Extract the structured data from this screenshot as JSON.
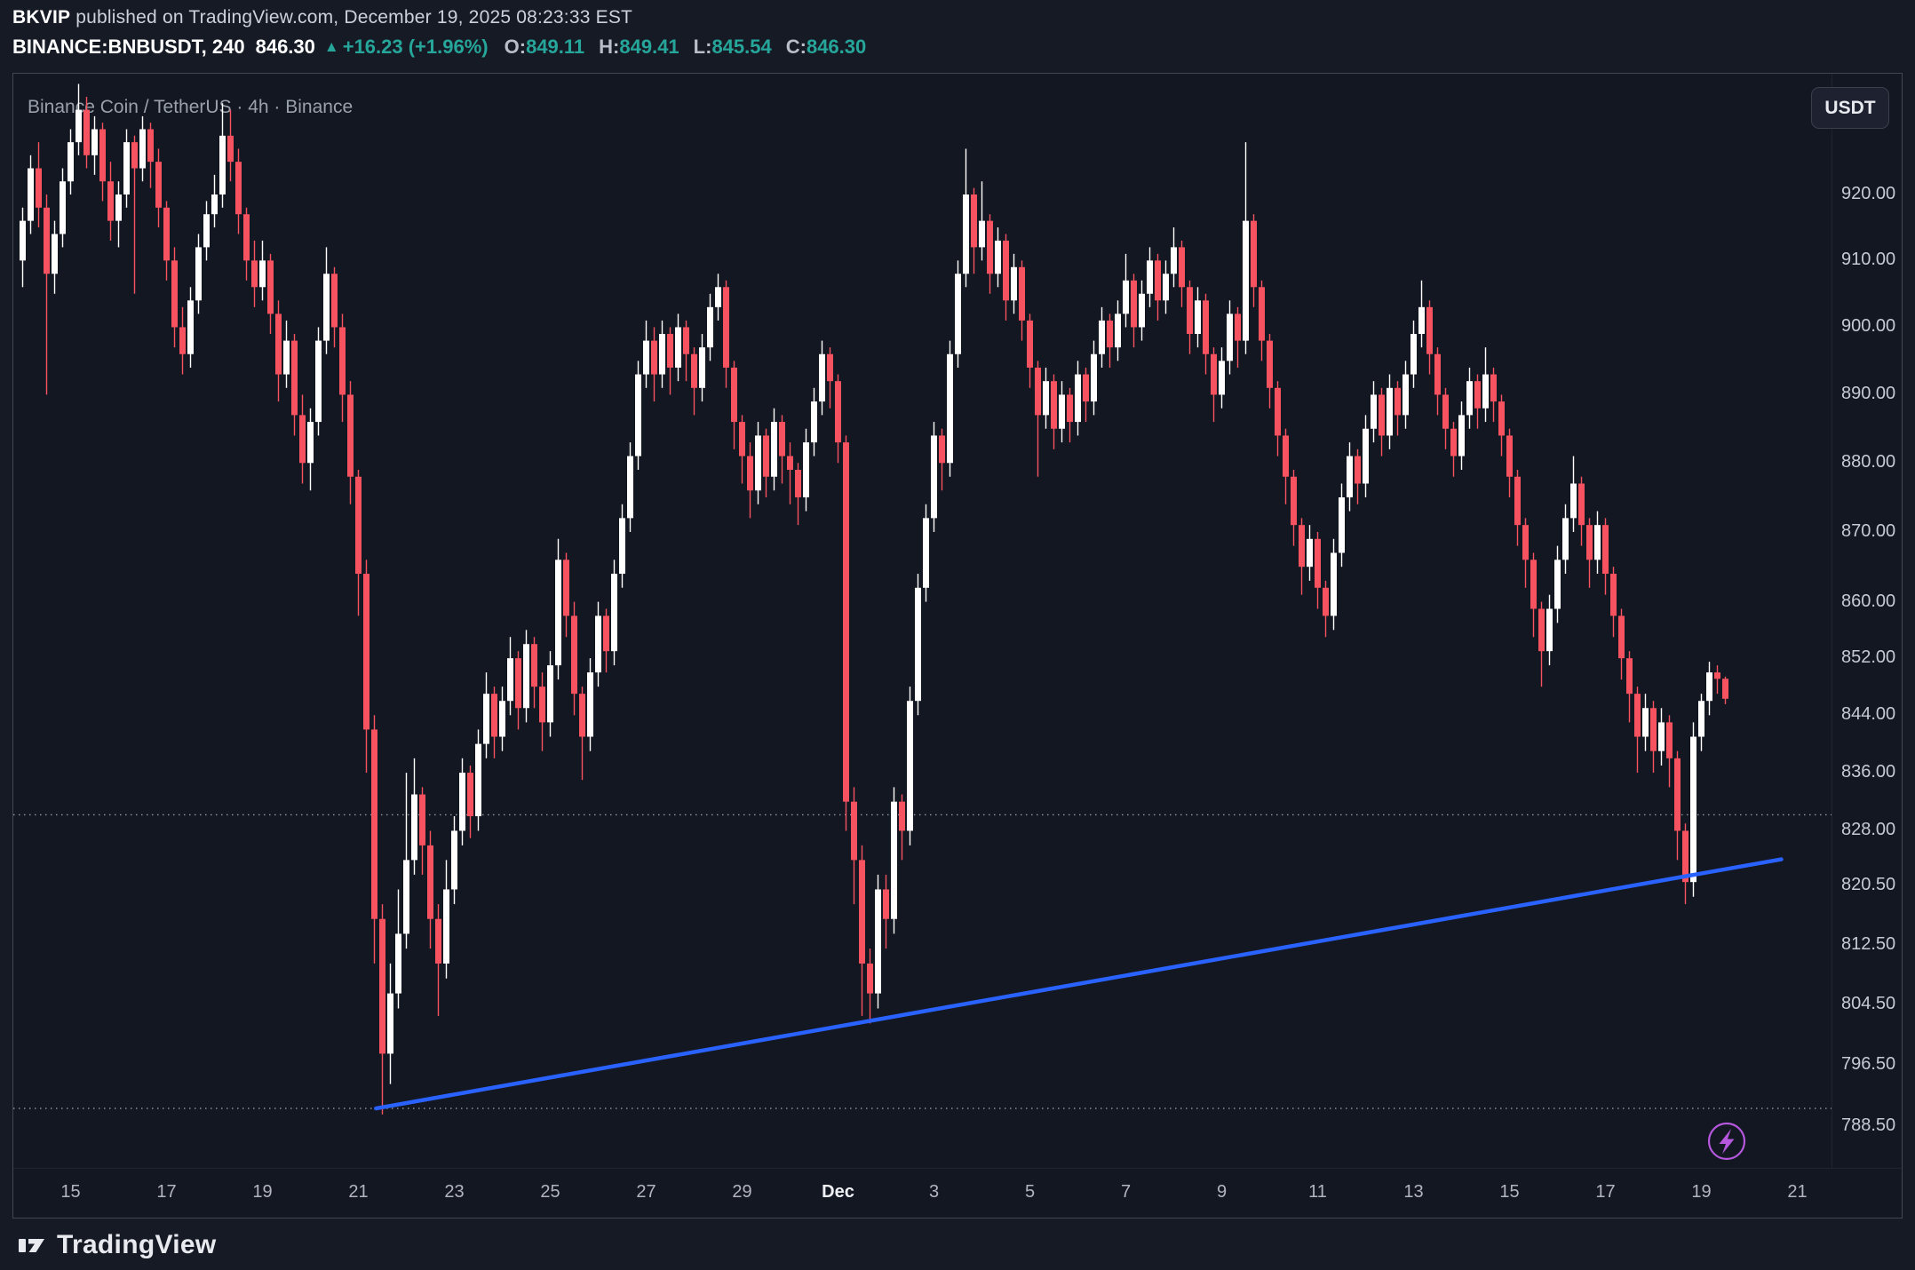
{
  "header": {
    "author": "BKVIP",
    "published_text": " published on TradingView.com, December 19, 2025 08:23:33 EST",
    "symbol": "BINANCE:BNBUSDT, 240",
    "last_price": "846.30",
    "up_arrow": "▲",
    "change_text": "+16.23 (+1.96%)",
    "ohlc": [
      {
        "label": "O:",
        "value": "849.11"
      },
      {
        "label": "H:",
        "value": "849.41"
      },
      {
        "label": "L:",
        "value": "845.54"
      },
      {
        "label": "C:",
        "value": "846.30"
      }
    ]
  },
  "chart": {
    "title_overlay": "Binance Coin / TetherUS · 4h · Binance",
    "currency_button": "USDT"
  },
  "footer": {
    "brand": "TradingView"
  },
  "ui_colors": {
    "background": "#161a25",
    "panel_background": "#131722",
    "teal": "#26a69a",
    "white": "#ffffff",
    "gray_text": "#b2b5be"
  },
  "chart_data": {
    "type": "candlestick",
    "title": "BINANCE:BNBUSDT 4h (Binance Coin / TetherUS)",
    "interval": "4h",
    "legend_position": "none",
    "grid": false,
    "colors": {
      "up": "#ffffff",
      "down": "#f7525f",
      "trendline": "#2962ff",
      "dotted": "#9598a1",
      "accent_purple": "#b558dd"
    },
    "y_axis": {
      "side": "right",
      "scale": "log",
      "visible_range": [
        783,
        937
      ],
      "ticks": [
        {
          "label": "920.00",
          "value": 920
        },
        {
          "label": "910.00",
          "value": 910
        },
        {
          "label": "900.00",
          "value": 900
        },
        {
          "label": "890.00",
          "value": 890
        },
        {
          "label": "880.00",
          "value": 880
        },
        {
          "label": "870.00",
          "value": 870
        },
        {
          "label": "860.00",
          "value": 860
        },
        {
          "label": "852.00",
          "value": 852
        },
        {
          "label": "844.00",
          "value": 844
        },
        {
          "label": "836.00",
          "value": 836
        },
        {
          "label": "828.00",
          "value": 828
        },
        {
          "label": "820.50",
          "value": 820.5
        },
        {
          "label": "812.50",
          "value": 812.5
        },
        {
          "label": "804.50",
          "value": 804.5
        },
        {
          "label": "796.50",
          "value": 796.5
        },
        {
          "label": "788.50",
          "value": 788.5
        }
      ]
    },
    "x_axis": {
      "start_date": "Nov 14",
      "candles_per_day": 6,
      "labels": [
        {
          "text": "15",
          "index": 6
        },
        {
          "text": "17",
          "index": 18
        },
        {
          "text": "19",
          "index": 30
        },
        {
          "text": "21",
          "index": 42
        },
        {
          "text": "23",
          "index": 54
        },
        {
          "text": "25",
          "index": 66
        },
        {
          "text": "27",
          "index": 78
        },
        {
          "text": "29",
          "index": 90
        },
        {
          "text": "Dec",
          "index": 102,
          "major": true
        },
        {
          "text": "3",
          "index": 114
        },
        {
          "text": "5",
          "index": 126
        },
        {
          "text": "7",
          "index": 138
        },
        {
          "text": "9",
          "index": 150
        },
        {
          "text": "11",
          "index": 162
        },
        {
          "text": "13",
          "index": 174
        },
        {
          "text": "15",
          "index": 186
        },
        {
          "text": "17",
          "index": 198
        },
        {
          "text": "19",
          "index": 210
        },
        {
          "text": "21",
          "index": 222
        }
      ]
    },
    "dotted_levels": [
      830.2,
      790.8
    ],
    "trendline": {
      "from_index": 44.2,
      "from_price": 790.8,
      "to_index": 220,
      "to_price": 824.1,
      "color": "#2962ff"
    },
    "candles_ohlc": [
      [
        910,
        918,
        906,
        916
      ],
      [
        916,
        926,
        914,
        924
      ],
      [
        924,
        928,
        915,
        918
      ],
      [
        918,
        920,
        890,
        908
      ],
      [
        908,
        916,
        905,
        914
      ],
      [
        914,
        924,
        912,
        922
      ],
      [
        922,
        930,
        920,
        928
      ],
      [
        928,
        937,
        926,
        933
      ],
      [
        933,
        935,
        924,
        926
      ],
      [
        926,
        932,
        923,
        930
      ],
      [
        930,
        931,
        919,
        922
      ],
      [
        922,
        925,
        913,
        916
      ],
      [
        916,
        922,
        912,
        920
      ],
      [
        920,
        930,
        918,
        928
      ],
      [
        928,
        929,
        905,
        924
      ],
      [
        924,
        932,
        922,
        930
      ],
      [
        930,
        931,
        921,
        925
      ],
      [
        925,
        927,
        915,
        918
      ],
      [
        918,
        919,
        907,
        910
      ],
      [
        910,
        912,
        897,
        900
      ],
      [
        900,
        903,
        893,
        896
      ],
      [
        896,
        906,
        894,
        904
      ],
      [
        904,
        914,
        902,
        912
      ],
      [
        912,
        919,
        910,
        917
      ],
      [
        917,
        923,
        915,
        920
      ],
      [
        920,
        934,
        918,
        929
      ],
      [
        929,
        933,
        922,
        925
      ],
      [
        925,
        927,
        914,
        917
      ],
      [
        917,
        918,
        907,
        910
      ],
      [
        910,
        913,
        903,
        906
      ],
      [
        906,
        913,
        904,
        910
      ],
      [
        910,
        911,
        899,
        902
      ],
      [
        902,
        904,
        889,
        893
      ],
      [
        893,
        901,
        891,
        898
      ],
      [
        898,
        899,
        884,
        887
      ],
      [
        887,
        890,
        877,
        880
      ],
      [
        880,
        888,
        876,
        886
      ],
      [
        886,
        900,
        884,
        898
      ],
      [
        898,
        912,
        896,
        908
      ],
      [
        908,
        909,
        897,
        900
      ],
      [
        900,
        902,
        886,
        890
      ],
      [
        890,
        892,
        874,
        878
      ],
      [
        878,
        879,
        858,
        864
      ],
      [
        864,
        866,
        836,
        842
      ],
      [
        842,
        844,
        810,
        816
      ],
      [
        816,
        818,
        790,
        798
      ],
      [
        798,
        810,
        794,
        806
      ],
      [
        806,
        820,
        804,
        814
      ],
      [
        814,
        836,
        812,
        824
      ],
      [
        824,
        838,
        822,
        833
      ],
      [
        833,
        834,
        822,
        826
      ],
      [
        826,
        828,
        812,
        816
      ],
      [
        816,
        818,
        803,
        810
      ],
      [
        810,
        824,
        808,
        820
      ],
      [
        820,
        830,
        818,
        828
      ],
      [
        828,
        838,
        826,
        836
      ],
      [
        836,
        837,
        827,
        830
      ],
      [
        830,
        842,
        828,
        840
      ],
      [
        840,
        850,
        838,
        847
      ],
      [
        847,
        848,
        838,
        841
      ],
      [
        841,
        848,
        839,
        846
      ],
      [
        846,
        855,
        844,
        852
      ],
      [
        852,
        853,
        842,
        845
      ],
      [
        845,
        856,
        843,
        854
      ],
      [
        854,
        855,
        845,
        848
      ],
      [
        848,
        850,
        839,
        843
      ],
      [
        843,
        853,
        841,
        851
      ],
      [
        851,
        869,
        849,
        866
      ],
      [
        866,
        867,
        855,
        858
      ],
      [
        858,
        860,
        844,
        847
      ],
      [
        847,
        848,
        835,
        841
      ],
      [
        841,
        852,
        839,
        850
      ],
      [
        850,
        860,
        848,
        858
      ],
      [
        858,
        859,
        850,
        853
      ],
      [
        853,
        866,
        851,
        864
      ],
      [
        864,
        874,
        862,
        872
      ],
      [
        872,
        883,
        870,
        881
      ],
      [
        881,
        895,
        879,
        893
      ],
      [
        893,
        901,
        891,
        898
      ],
      [
        898,
        900,
        889,
        893
      ],
      [
        893,
        901,
        891,
        899
      ],
      [
        899,
        900,
        890,
        894
      ],
      [
        894,
        902,
        892,
        900
      ],
      [
        900,
        901,
        892,
        896
      ],
      [
        896,
        897,
        887,
        891
      ],
      [
        891,
        899,
        889,
        897
      ],
      [
        897,
        905,
        895,
        903
      ],
      [
        903,
        908,
        901,
        906
      ],
      [
        906,
        907,
        891,
        894
      ],
      [
        894,
        895,
        882,
        886
      ],
      [
        886,
        887,
        877,
        881
      ],
      [
        881,
        883,
        872,
        876
      ],
      [
        876,
        886,
        874,
        884
      ],
      [
        884,
        885,
        875,
        878
      ],
      [
        878,
        888,
        876,
        886
      ],
      [
        886,
        887,
        877,
        881
      ],
      [
        881,
        883,
        874,
        879
      ],
      [
        879,
        880,
        871,
        875
      ],
      [
        875,
        885,
        873,
        883
      ],
      [
        883,
        891,
        881,
        889
      ],
      [
        889,
        898,
        887,
        896
      ],
      [
        896,
        897,
        888,
        892
      ],
      [
        892,
        893,
        880,
        883
      ],
      [
        883,
        884,
        828,
        832
      ],
      [
        832,
        834,
        818,
        824
      ],
      [
        824,
        826,
        803,
        810
      ],
      [
        810,
        812,
        802,
        806
      ],
      [
        806,
        822,
        804,
        820
      ],
      [
        820,
        822,
        812,
        816
      ],
      [
        816,
        834,
        814,
        832
      ],
      [
        832,
        833,
        824,
        828
      ],
      [
        828,
        848,
        826,
        846
      ],
      [
        846,
        864,
        844,
        862
      ],
      [
        862,
        874,
        860,
        872
      ],
      [
        872,
        886,
        870,
        884
      ],
      [
        884,
        885,
        876,
        880
      ],
      [
        880,
        898,
        878,
        896
      ],
      [
        896,
        910,
        894,
        908
      ],
      [
        908,
        927,
        906,
        920
      ],
      [
        920,
        921,
        908,
        912
      ],
      [
        912,
        922,
        910,
        916
      ],
      [
        916,
        917,
        905,
        908
      ],
      [
        908,
        915,
        906,
        913
      ],
      [
        913,
        914,
        901,
        904
      ],
      [
        904,
        911,
        902,
        909
      ],
      [
        909,
        910,
        898,
        901
      ],
      [
        901,
        902,
        891,
        894
      ],
      [
        894,
        895,
        878,
        887
      ],
      [
        887,
        894,
        885,
        892
      ],
      [
        892,
        893,
        882,
        885
      ],
      [
        885,
        892,
        883,
        890
      ],
      [
        890,
        891,
        883,
        886
      ],
      [
        886,
        895,
        884,
        893
      ],
      [
        893,
        894,
        886,
        889
      ],
      [
        889,
        898,
        887,
        896
      ],
      [
        896,
        903,
        894,
        901
      ],
      [
        901,
        902,
        894,
        897
      ],
      [
        897,
        904,
        895,
        902
      ],
      [
        902,
        911,
        900,
        907
      ],
      [
        907,
        908,
        897,
        900
      ],
      [
        900,
        907,
        898,
        905
      ],
      [
        905,
        912,
        903,
        910
      ],
      [
        910,
        911,
        901,
        904
      ],
      [
        904,
        910,
        902,
        908
      ],
      [
        908,
        915,
        906,
        912
      ],
      [
        912,
        913,
        903,
        906
      ],
      [
        906,
        907,
        896,
        899
      ],
      [
        899,
        906,
        897,
        904
      ],
      [
        904,
        905,
        893,
        896
      ],
      [
        896,
        897,
        886,
        890
      ],
      [
        890,
        897,
        888,
        895
      ],
      [
        895,
        904,
        893,
        902
      ],
      [
        902,
        903,
        894,
        898
      ],
      [
        898,
        928,
        896,
        916
      ],
      [
        916,
        917,
        903,
        906
      ],
      [
        906,
        907,
        895,
        898
      ],
      [
        898,
        899,
        888,
        891
      ],
      [
        891,
        892,
        881,
        884
      ],
      [
        884,
        885,
        874,
        878
      ],
      [
        878,
        879,
        868,
        871
      ],
      [
        871,
        872,
        861,
        865
      ],
      [
        865,
        871,
        863,
        869
      ],
      [
        869,
        870,
        859,
        862
      ],
      [
        862,
        863,
        855,
        858
      ],
      [
        858,
        869,
        856,
        867
      ],
      [
        867,
        877,
        865,
        875
      ],
      [
        875,
        883,
        873,
        881
      ],
      [
        881,
        882,
        874,
        877
      ],
      [
        877,
        887,
        875,
        885
      ],
      [
        885,
        892,
        883,
        890
      ],
      [
        890,
        891,
        881,
        884
      ],
      [
        884,
        893,
        882,
        891
      ],
      [
        891,
        892,
        884,
        887
      ],
      [
        887,
        895,
        885,
        893
      ],
      [
        893,
        901,
        891,
        899
      ],
      [
        899,
        907,
        897,
        903
      ],
      [
        903,
        904,
        893,
        896
      ],
      [
        896,
        897,
        887,
        890
      ],
      [
        890,
        891,
        882,
        885
      ],
      [
        885,
        886,
        878,
        881
      ],
      [
        881,
        889,
        879,
        887
      ],
      [
        887,
        894,
        885,
        892
      ],
      [
        892,
        893,
        885,
        888
      ],
      [
        888,
        897,
        886,
        893
      ],
      [
        893,
        894,
        886,
        889
      ],
      [
        889,
        890,
        881,
        884
      ],
      [
        884,
        885,
        875,
        878
      ],
      [
        878,
        879,
        868,
        871
      ],
      [
        871,
        872,
        862,
        866
      ],
      [
        866,
        867,
        855,
        859
      ],
      [
        859,
        860,
        848,
        853
      ],
      [
        853,
        861,
        851,
        859
      ],
      [
        859,
        868,
        857,
        866
      ],
      [
        866,
        874,
        864,
        872
      ],
      [
        872,
        881,
        870,
        877
      ],
      [
        877,
        878,
        868,
        871
      ],
      [
        871,
        872,
        862,
        866
      ],
      [
        866,
        873,
        864,
        871
      ],
      [
        871,
        872,
        861,
        864
      ],
      [
        864,
        865,
        855,
        858
      ],
      [
        858,
        859,
        849,
        852
      ],
      [
        852,
        853,
        843,
        847
      ],
      [
        847,
        848,
        836,
        841
      ],
      [
        841,
        847,
        839,
        845
      ],
      [
        845,
        846,
        836,
        839
      ],
      [
        839,
        845,
        837,
        843
      ],
      [
        843,
        844,
        834,
        838
      ],
      [
        838,
        839,
        824,
        828
      ],
      [
        828,
        829,
        818,
        821
      ],
      [
        821,
        843,
        819,
        841
      ],
      [
        841,
        847,
        839,
        846
      ],
      [
        846,
        851.5,
        844,
        850
      ],
      [
        850,
        851,
        847,
        849.1
      ],
      [
        849.11,
        849.41,
        845.54,
        846.3
      ]
    ]
  }
}
